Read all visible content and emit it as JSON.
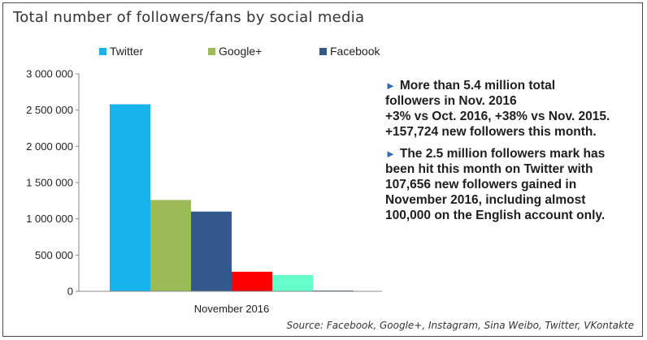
{
  "title": "Total number of followers/fans by social media",
  "legend": [
    {
      "label": "Twitter",
      "color": "#16b3ec"
    },
    {
      "label": "Google+",
      "color": "#9bbb59"
    },
    {
      "label": "Facebook",
      "color": "#33598c"
    }
  ],
  "notes": [
    {
      "lines": [
        "More than 5.4 million  total",
        "followers in Nov. 2016",
        "+3% vs Oct. 2016, +38% vs Nov. 2015.",
        "+157,724 new followers this month."
      ]
    },
    {
      "lines": [
        "The 2.5 million followers mark has",
        "been hit this month on Twitter with",
        "107,656 new followers gained in",
        "November 2016, including almost",
        "100,000 on the English account only."
      ]
    }
  ],
  "source": "Source: Facebook, Google+, Instagram, Sina Weibo, Twitter, VKontakte",
  "chart_data": {
    "type": "bar",
    "categories": [
      "November 2016"
    ],
    "series": [
      {
        "name": "Twitter",
        "values": [
          2580000
        ],
        "color": "#16b3ec"
      },
      {
        "name": "Google+",
        "values": [
          1260000
        ],
        "color": "#9bbb59"
      },
      {
        "name": "Facebook",
        "values": [
          1100000
        ],
        "color": "#33598c"
      },
      {
        "values": [
          270000
        ],
        "color": "#ff0000"
      },
      {
        "values": [
          225000
        ],
        "color": "#66ffcc"
      },
      {
        "values": [
          10000
        ],
        "color": "#1f3f6e"
      }
    ],
    "ylim": [
      0,
      3000000
    ],
    "yticks": [
      0,
      500000,
      1000000,
      1500000,
      2000000,
      2500000,
      3000000
    ],
    "ytick_labels": [
      "0",
      "500 000",
      "1 000 000",
      "1 500 000",
      "2 000 000",
      "2 500 000",
      "3 000 000"
    ],
    "grid": false
  }
}
